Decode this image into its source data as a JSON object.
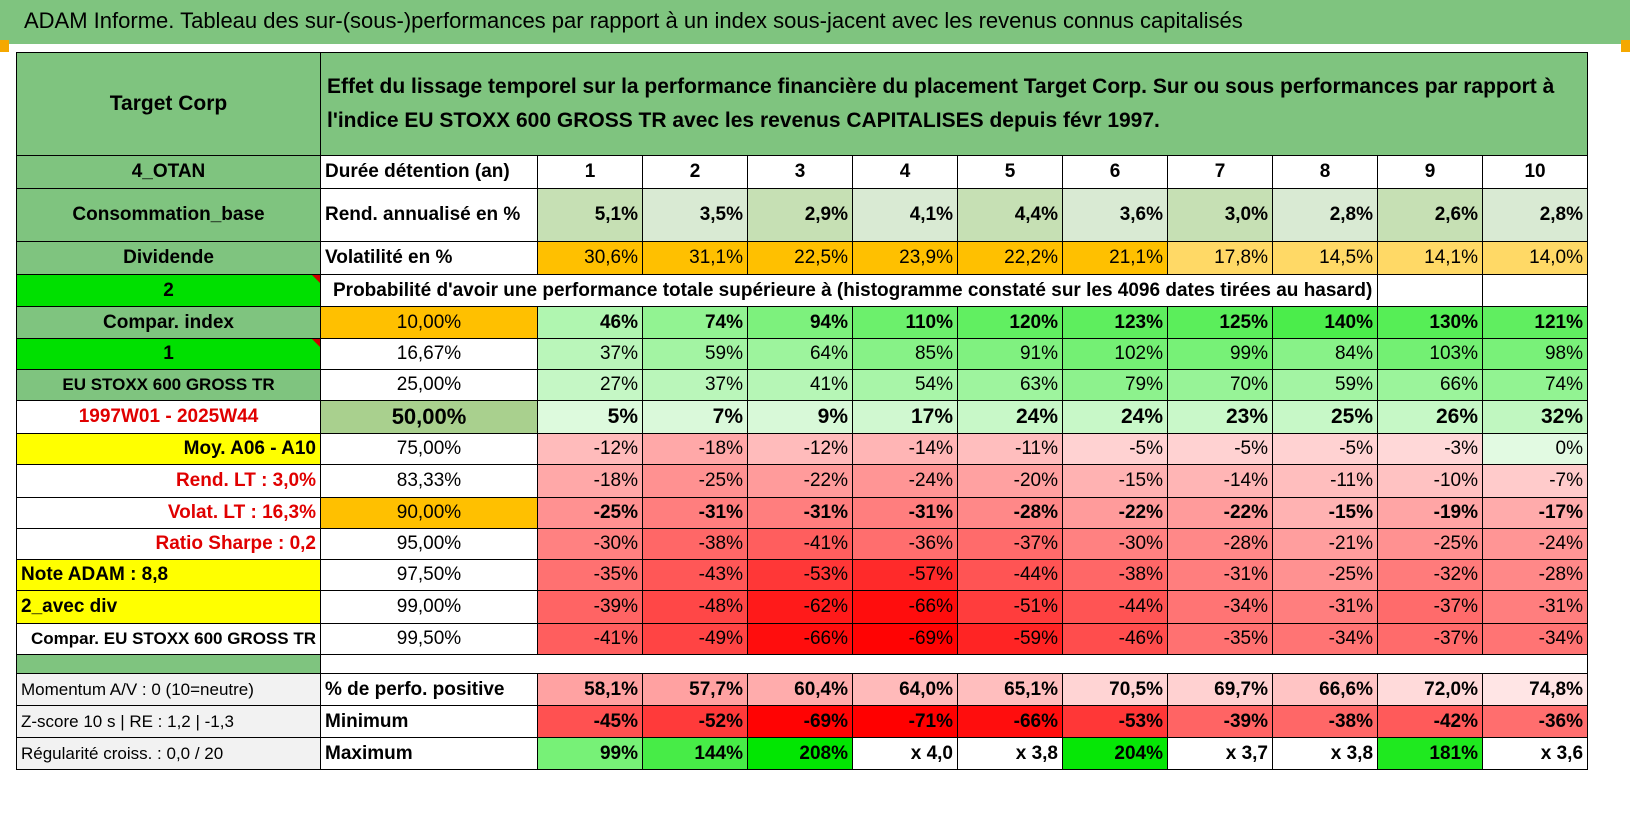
{
  "title": "ADAM Informe. Tableau des sur-(sous-)performances par rapport à un index sous-jacent avec les revenus connus capitalisés",
  "asset_name": "Target Corp",
  "description": "Effet du lissage temporel sur la performance financière du placement Target Corp. Sur ou sous performances par rapport à l'indice EU STOXX 600 GROSS TR avec les revenus CAPITALISES depuis févr 1997.",
  "years": [
    "1",
    "2",
    "3",
    "4",
    "5",
    "6",
    "7",
    "8",
    "9",
    "10"
  ],
  "header_rows": [
    {
      "left": "4_OTAN",
      "label": "Durée détention (an)"
    },
    {
      "left": "Consommation_base",
      "label": "Rend. annualisé en %",
      "values": [
        "5,1%",
        "3,5%",
        "2,9%",
        "4,1%",
        "4,4%",
        "3,6%",
        "3,0%",
        "2,8%",
        "2,6%",
        "2,8%"
      ]
    },
    {
      "left": "Dividende",
      "label": "Volatilité en %",
      "values": [
        "30,6%",
        "31,1%",
        "22,5%",
        "23,9%",
        "22,2%",
        "21,1%",
        "17,8%",
        "14,5%",
        "14,1%",
        "14,0%"
      ]
    }
  ],
  "prob_row": {
    "left": "2",
    "text": "Probabilité d'avoir une performance totale supérieure à (histogramme constaté sur les 4096 dates tirées au hasard)"
  },
  "rows": [
    {
      "left": "Compar. index",
      "threshold": "10,00%",
      "values": [
        "46%",
        "74%",
        "94%",
        "110%",
        "120%",
        "123%",
        "125%",
        "140%",
        "130%",
        "121%"
      ]
    },
    {
      "left": "1",
      "threshold": "16,67%",
      "values": [
        "37%",
        "59%",
        "64%",
        "85%",
        "91%",
        "102%",
        "99%",
        "84%",
        "103%",
        "98%"
      ]
    },
    {
      "left": "EU STOXX 600 GROSS TR",
      "threshold": "25,00%",
      "values": [
        "27%",
        "37%",
        "41%",
        "54%",
        "63%",
        "79%",
        "70%",
        "59%",
        "66%",
        "74%"
      ]
    },
    {
      "left": "1997W01 - 2025W44",
      "threshold": "50,00%",
      "values": [
        "5%",
        "7%",
        "9%",
        "17%",
        "24%",
        "24%",
        "23%",
        "25%",
        "26%",
        "32%"
      ]
    },
    {
      "left": "Moy. A06 - A10",
      "threshold": "75,00%",
      "values": [
        "-12%",
        "-18%",
        "-12%",
        "-14%",
        "-11%",
        "-5%",
        "-5%",
        "-5%",
        "-3%",
        "0%"
      ]
    },
    {
      "left": "Rend. LT :   3,0%",
      "threshold": "83,33%",
      "values": [
        "-18%",
        "-25%",
        "-22%",
        "-24%",
        "-20%",
        "-15%",
        "-14%",
        "-11%",
        "-10%",
        "-7%"
      ]
    },
    {
      "left": "Volat. LT :   16,3%",
      "threshold": "90,00%",
      "values": [
        "-25%",
        "-31%",
        "-31%",
        "-31%",
        "-28%",
        "-22%",
        "-22%",
        "-15%",
        "-19%",
        "-17%"
      ]
    },
    {
      "left": "Ratio Sharpe :    0,2",
      "threshold": "95,00%",
      "values": [
        "-30%",
        "-38%",
        "-41%",
        "-36%",
        "-37%",
        "-30%",
        "-28%",
        "-21%",
        "-25%",
        "-24%"
      ]
    },
    {
      "left": "Note ADAM : 8,8",
      "threshold": "97,50%",
      "values": [
        "-35%",
        "-43%",
        "-53%",
        "-57%",
        "-44%",
        "-38%",
        "-31%",
        "-25%",
        "-32%",
        "-28%"
      ]
    },
    {
      "left": "2_avec div",
      "threshold": "99,00%",
      "values": [
        "-39%",
        "-48%",
        "-62%",
        "-66%",
        "-51%",
        "-44%",
        "-34%",
        "-31%",
        "-37%",
        "-31%"
      ]
    },
    {
      "left": "Compar. EU STOXX 600 GROSS TR",
      "threshold": "99,50%",
      "values": [
        "-41%",
        "-49%",
        "-66%",
        "-69%",
        "-59%",
        "-46%",
        "-35%",
        "-34%",
        "-37%",
        "-34%"
      ]
    }
  ],
  "bottom_rows": [
    {
      "left": "Momentum A/V : 0 (10=neutre)",
      "label": "% de perfo. positive",
      "values": [
        "58,1%",
        "57,7%",
        "60,4%",
        "64,0%",
        "65,1%",
        "70,5%",
        "69,7%",
        "66,6%",
        "72,0%",
        "74,8%"
      ]
    },
    {
      "left": "Z-score 10 s | RE : 1,2 | -1,3",
      "label": "Minimum",
      "values": [
        "-45%",
        "-52%",
        "-69%",
        "-71%",
        "-66%",
        "-53%",
        "-39%",
        "-38%",
        "-42%",
        "-36%"
      ]
    },
    {
      "left": "Régularité croiss. : 0,0 / 20",
      "label": "Maximum",
      "values": [
        "99%",
        "144%",
        "208%",
        "x 4,0",
        "x 3,8",
        "204%",
        "x 3,7",
        "x 3,8",
        "181%",
        "x 3,6"
      ]
    }
  ],
  "colors": {
    "header_green": "#7fc47f",
    "bright_green": "#00e000",
    "orange": "#ffc000",
    "yellow": "#ffff00",
    "red_text": "#e00000",
    "rend_fill": "#c6e0b4"
  }
}
